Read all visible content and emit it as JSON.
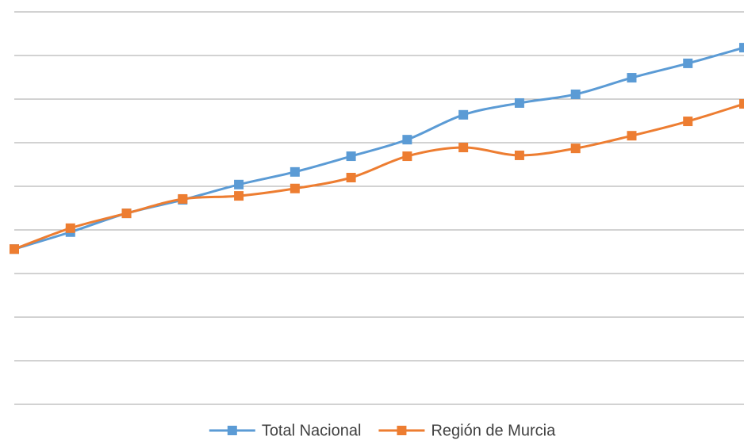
{
  "chart_data": {
    "type": "line",
    "categories": [
      null,
      null,
      null,
      null,
      null,
      null,
      null,
      null,
      null,
      null,
      null,
      null,
      null,
      null
    ],
    "series": [
      {
        "name": "Total Nacional",
        "color": "#5b9bd5",
        "values": [
          3.56,
          3.95,
          4.38,
          4.69,
          5.04,
          5.33,
          5.69,
          6.07,
          6.64,
          6.91,
          7.11,
          7.49,
          7.82,
          8.18
        ]
      },
      {
        "name": "Región de Murcia",
        "color": "#ed7d31",
        "values": [
          3.56,
          4.04,
          4.38,
          4.71,
          4.78,
          4.95,
          5.2,
          5.69,
          5.89,
          5.71,
          5.87,
          6.16,
          6.49,
          6.89
        ]
      }
    ],
    "ylim": [
      0,
      9
    ],
    "yticks": [
      0,
      1,
      2,
      3,
      4,
      5,
      6,
      7,
      8,
      9
    ],
    "grid": true,
    "smooth": true,
    "legend": "bottom"
  }
}
